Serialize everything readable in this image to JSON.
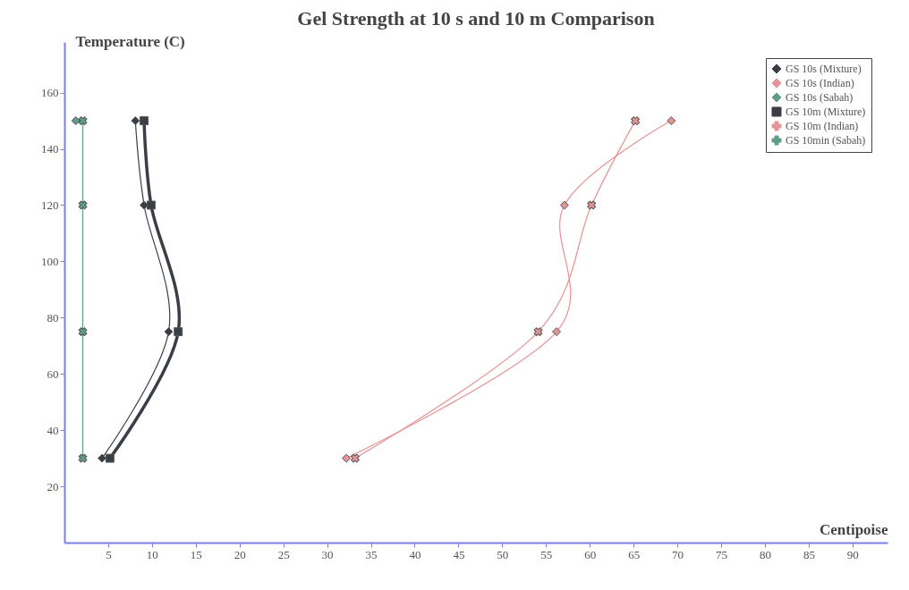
{
  "chart_data": {
    "type": "line",
    "title": "Gel Strength at 10 s and 10 m Comparison",
    "xlabel": "Centipoise",
    "ylabel": "Temperature (C)",
    "xlim": [
      0,
      94
    ],
    "xticks": [
      5,
      10,
      15,
      20,
      25,
      30,
      35,
      40,
      45,
      50,
      55,
      60,
      65,
      70,
      75,
      80,
      85,
      90
    ],
    "ylim": [
      0,
      178
    ],
    "yticks": [
      20,
      40,
      60,
      80,
      100,
      120,
      140,
      160
    ],
    "grid": false,
    "legend": "top right",
    "series": [
      {
        "name": "GS 10s (Mixture)",
        "color": "#3a3f45",
        "marker": "diamond",
        "x": [
          4.3,
          11.9,
          9.1,
          8.1
        ],
        "values": [
          30,
          75,
          120,
          150
        ]
      },
      {
        "name": "GS 10s (Indian)",
        "color": "#e49494",
        "marker": "diamond",
        "x": [
          32.2,
          56.2,
          57.1,
          69.3
        ],
        "values": [
          30,
          75,
          120,
          150
        ]
      },
      {
        "name": "GS 10s (Sabah)",
        "color": "#5f9c8a",
        "marker": "diamond",
        "x": [
          null,
          null,
          null,
          1.3
        ],
        "values": [
          null,
          null,
          null,
          150
        ]
      },
      {
        "name": "GS 10m (Mixture)",
        "color": "#3a3f45",
        "marker": "square",
        "x": [
          5.2,
          13.0,
          9.9,
          9.1
        ],
        "values": [
          30,
          75,
          120,
          150
        ]
      },
      {
        "name": "GS 10m (Indian)",
        "color": "#e49494",
        "marker": "cross",
        "x": [
          33.2,
          54.1,
          60.2,
          65.2
        ],
        "values": [
          30,
          75,
          120,
          150
        ]
      },
      {
        "name": "GS 10min (Sabah)",
        "color": "#5f9c8a",
        "marker": "cross",
        "x": [
          2.1,
          2.1,
          2.1,
          2.1
        ],
        "values": [
          30,
          75,
          120,
          150
        ]
      }
    ]
  }
}
